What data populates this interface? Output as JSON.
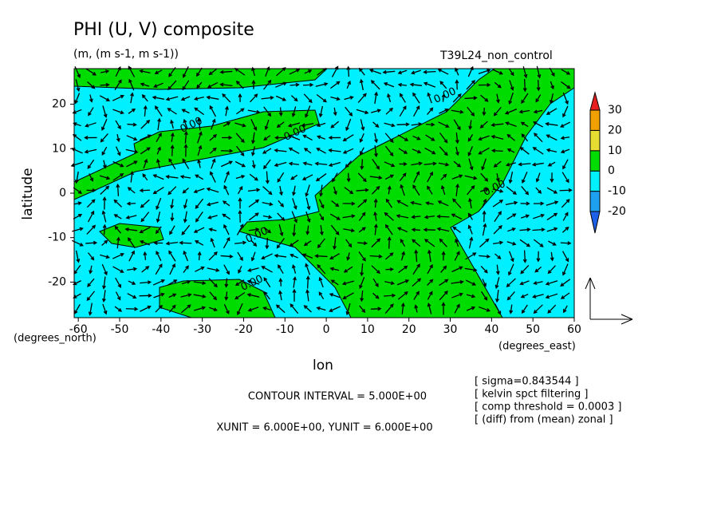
{
  "chart_data": {
    "type": "contour-vector",
    "title": "PHI (U, V) composite",
    "subtitle": "(m, (m s-1, m s-1))",
    "run_label": "T39L24_non_control",
    "x_label": "lon",
    "y_label": "latitude",
    "x_unit": "(degrees_east)",
    "y_unit": "(degrees_north)",
    "xlim": [
      -61,
      60
    ],
    "ylim": [
      -28,
      28
    ],
    "xticks": [
      -60,
      -50,
      -40,
      -30,
      -20,
      -10,
      0,
      10,
      20,
      30,
      40,
      50,
      60
    ],
    "yticks": [
      -20,
      -10,
      0,
      10,
      20
    ],
    "colorbar": {
      "levels": [
        -20,
        -10,
        0,
        10,
        20,
        30
      ],
      "colors": [
        "#1e60e8",
        "#1ea0f0",
        "#00f0ff",
        "#00dc00",
        "#e6dc32",
        "#f0a000",
        "#e61e1e"
      ]
    },
    "contour_labels": [
      "0.00",
      "0.00",
      "0.00",
      "0.00",
      "0.00",
      "0.00"
    ],
    "contour_interval": "CONTOUR INTERVAL = 5.000E+00",
    "vector_units": "XUNIT = 6.000E+00, YUNIT = 6.000E+00",
    "notes": [
      "[ sigma=0.843544 ]",
      "[ kelvin spct filtering ]",
      "[ comp threshold = 0.0003 ]",
      "[ (diff) from (mean) zonal ]"
    ]
  }
}
